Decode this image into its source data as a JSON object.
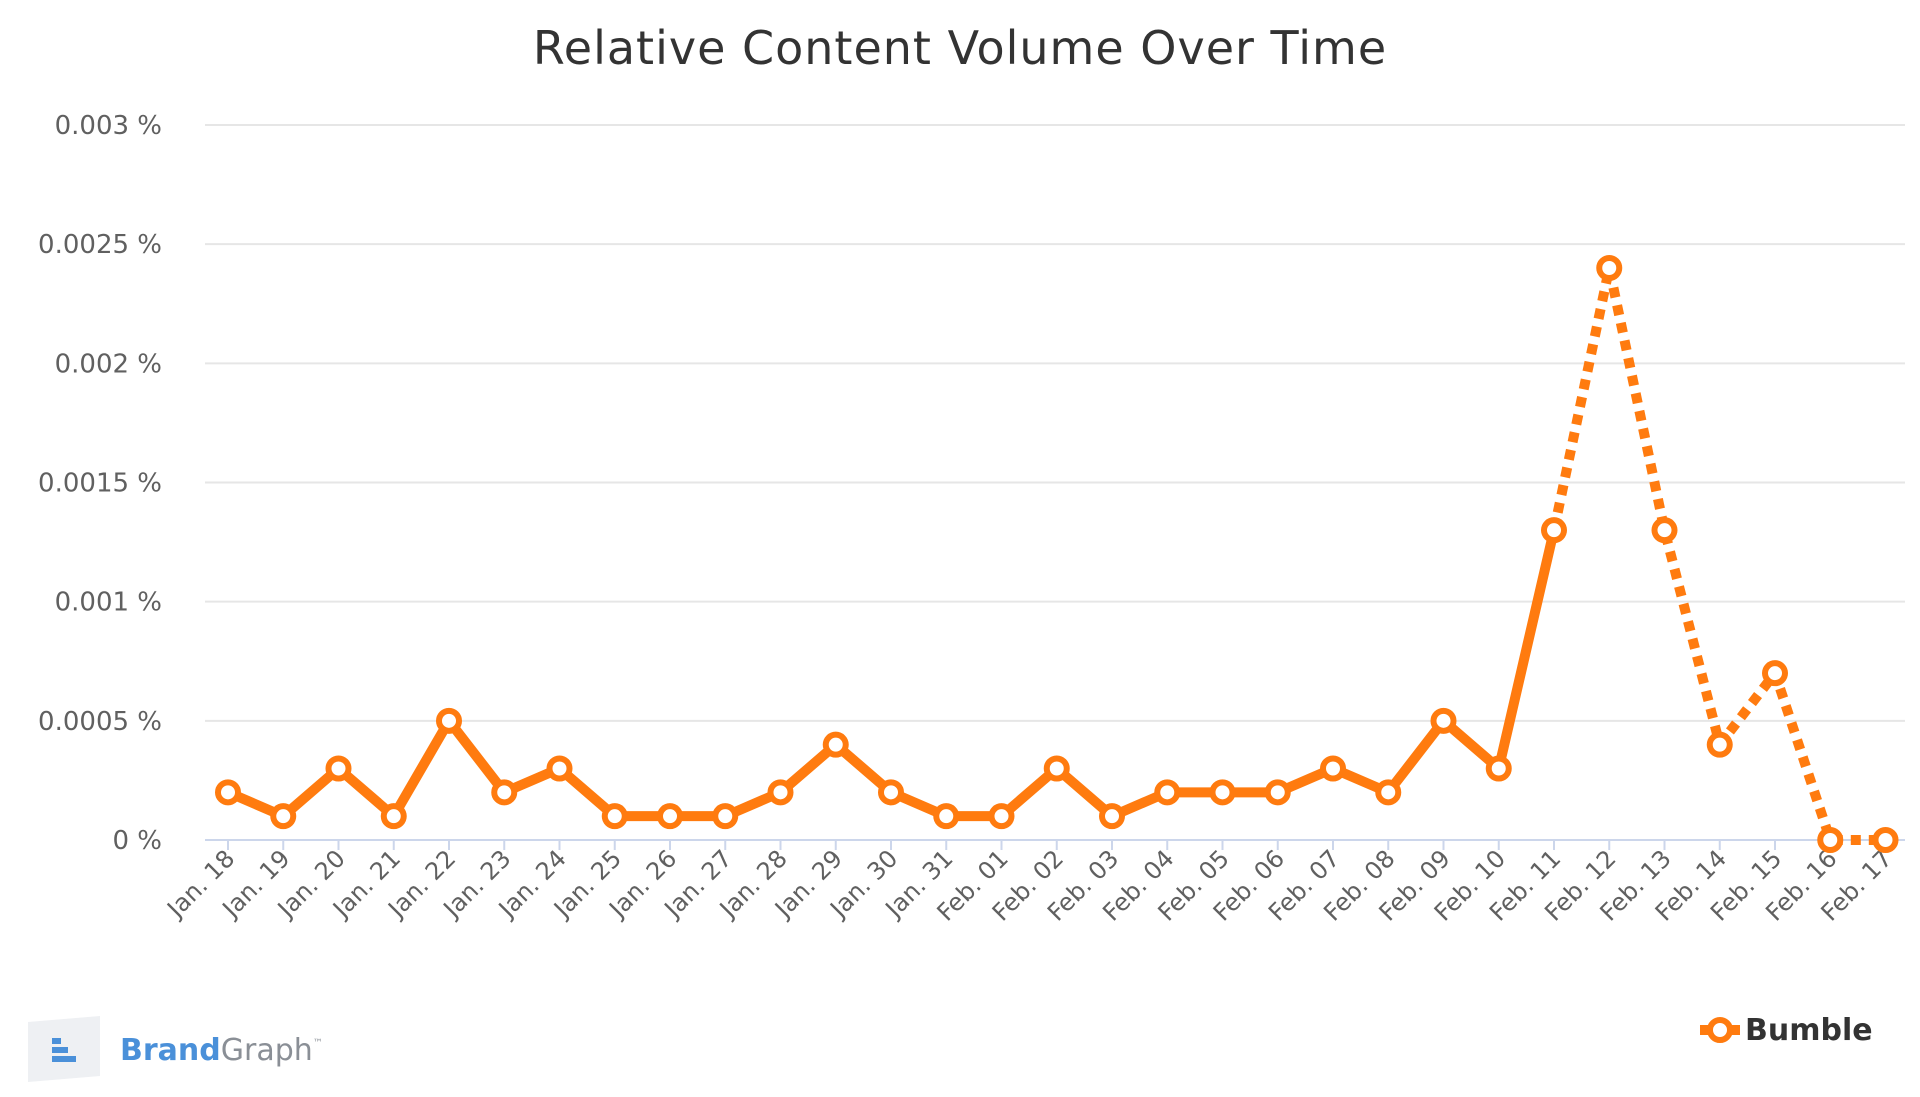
{
  "chart_data": {
    "type": "line",
    "title": "Relative Content Volume Over Time",
    "xlabel": "",
    "ylabel": "",
    "y_unit": " %",
    "ylim": [
      0,
      0.003
    ],
    "y_ticks": [
      "0 %",
      "0.0005 %",
      "0.001 %",
      "0.0015 %",
      "0.002 %",
      "0.0025 %",
      "0.003 %"
    ],
    "y_tick_values": [
      0,
      0.0005,
      0.001,
      0.0015,
      0.002,
      0.0025,
      0.003
    ],
    "grid": true,
    "legend": "bottom-right",
    "categories": [
      "Jan. 18",
      "Jan. 19",
      "Jan. 20",
      "Jan. 21",
      "Jan. 22",
      "Jan. 23",
      "Jan. 24",
      "Jan. 25",
      "Jan. 26",
      "Jan. 27",
      "Jan. 28",
      "Jan. 29",
      "Jan. 30",
      "Jan. 31",
      "Feb. 01",
      "Feb. 02",
      "Feb. 03",
      "Feb. 04",
      "Feb. 05",
      "Feb. 06",
      "Feb. 07",
      "Feb. 08",
      "Feb. 09",
      "Feb. 10",
      "Feb. 11",
      "Feb. 12",
      "Feb. 13",
      "Feb. 14",
      "Feb. 15",
      "Feb. 16",
      "Feb. 17"
    ],
    "series": [
      {
        "name": "Bumble",
        "color": "#ff7b0f",
        "values": [
          0.0002,
          0.0001,
          0.0003,
          0.0001,
          0.0005,
          0.0002,
          0.0003,
          0.0001,
          0.0001,
          0.0001,
          0.0002,
          0.0004,
          0.0002,
          0.0001,
          0.0001,
          0.0003,
          0.0001,
          0.0002,
          0.0002,
          0.0002,
          0.0003,
          0.0002,
          0.0005,
          0.0003,
          0.0013,
          0.0024,
          0.0013,
          0.0004,
          0.0007,
          0.0,
          0.0
        ],
        "dashed_from_index": 24
      }
    ]
  },
  "brand": {
    "name_part1": "Brand",
    "name_part2": "Graph",
    "trademark": "™",
    "accent": "#4a90d9",
    "icon": "brandgraph-logo-icon"
  },
  "colors": {
    "grid": "#e6e6e6",
    "axis": "#ccd6eb",
    "text": "#606060",
    "title": "#333333"
  }
}
